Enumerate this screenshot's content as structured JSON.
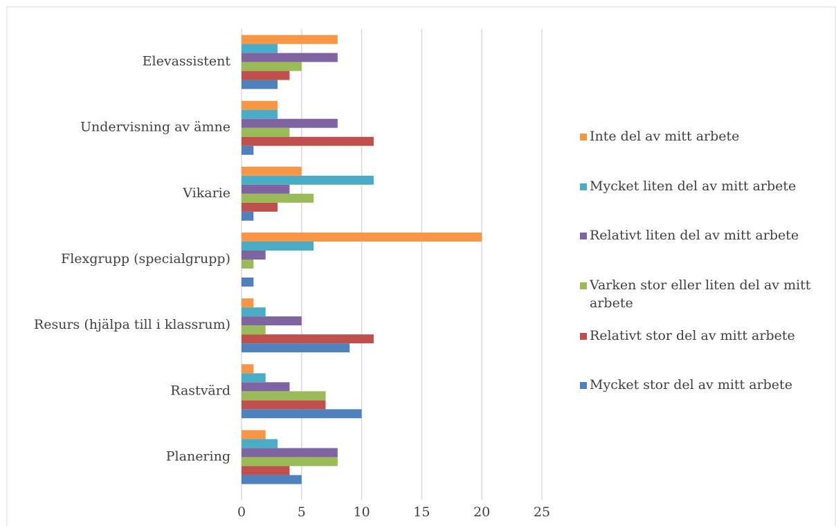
{
  "chart_data": {
    "type": "bar",
    "orientation": "horizontal",
    "categories": [
      "Planering",
      "Rastvärd",
      "Resurs (hjälpa till i klassrum)",
      "Flexgrupp (specialgrupp)",
      "Vikarie",
      "Undervisning av ämne",
      "Elevassistent"
    ],
    "series": [
      {
        "name": "Mycket stor del av mitt arbete",
        "color": "#4f81bd",
        "values": [
          5,
          10,
          9,
          1,
          1,
          1,
          3
        ]
      },
      {
        "name": "Relativt stor del av mitt arbete",
        "color": "#c0504d",
        "values": [
          4,
          7,
          11,
          0,
          3,
          11,
          4
        ]
      },
      {
        "name": "Varken stor eller liten del av mitt arbete",
        "color": "#9bbb59",
        "values": [
          8,
          7,
          2,
          1,
          6,
          4,
          5
        ]
      },
      {
        "name": "Relativt liten del av mitt arbete",
        "color": "#8064a2",
        "values": [
          8,
          4,
          5,
          2,
          4,
          8,
          8
        ]
      },
      {
        "name": "Mycket liten del av mitt arbete",
        "color": "#4bacc6",
        "values": [
          3,
          2,
          2,
          6,
          11,
          3,
          3
        ]
      },
      {
        "name": "Inte del av mitt arbete",
        "color": "#f79646",
        "values": [
          2,
          1,
          1,
          20,
          5,
          3,
          8
        ]
      }
    ],
    "xlim": [
      0,
      25
    ],
    "xticks": [
      0,
      5,
      10,
      15,
      20,
      25
    ],
    "grid": true,
    "legend": "right"
  }
}
